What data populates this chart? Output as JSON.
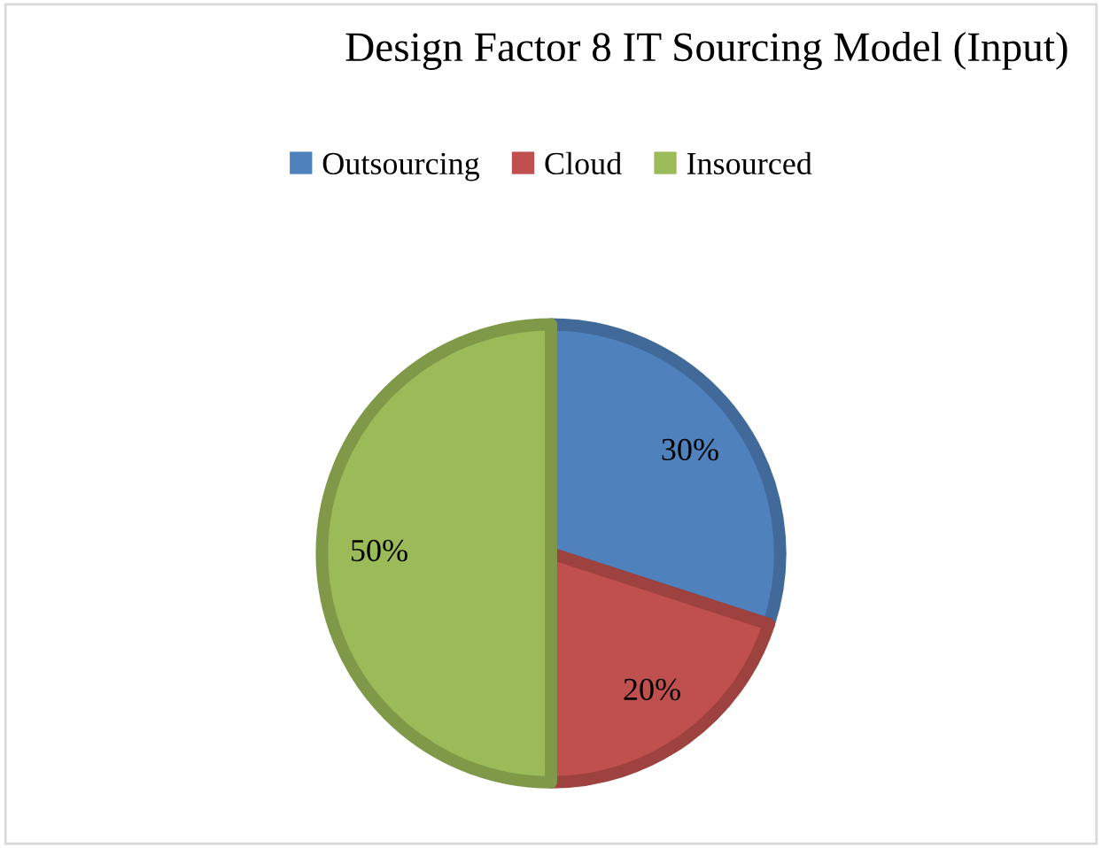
{
  "chart_data": {
    "type": "pie",
    "title": "Design Factor 8 IT Sourcing Model (Input)",
    "categories": [
      "Outsourcing",
      "Cloud",
      "Insourced"
    ],
    "values": [
      30,
      20,
      50
    ],
    "colors": [
      "#4f81bd",
      "#c0504d",
      "#9bbb59"
    ],
    "value_labels": [
      "30%",
      "20%",
      "50%"
    ],
    "legend": "top"
  }
}
